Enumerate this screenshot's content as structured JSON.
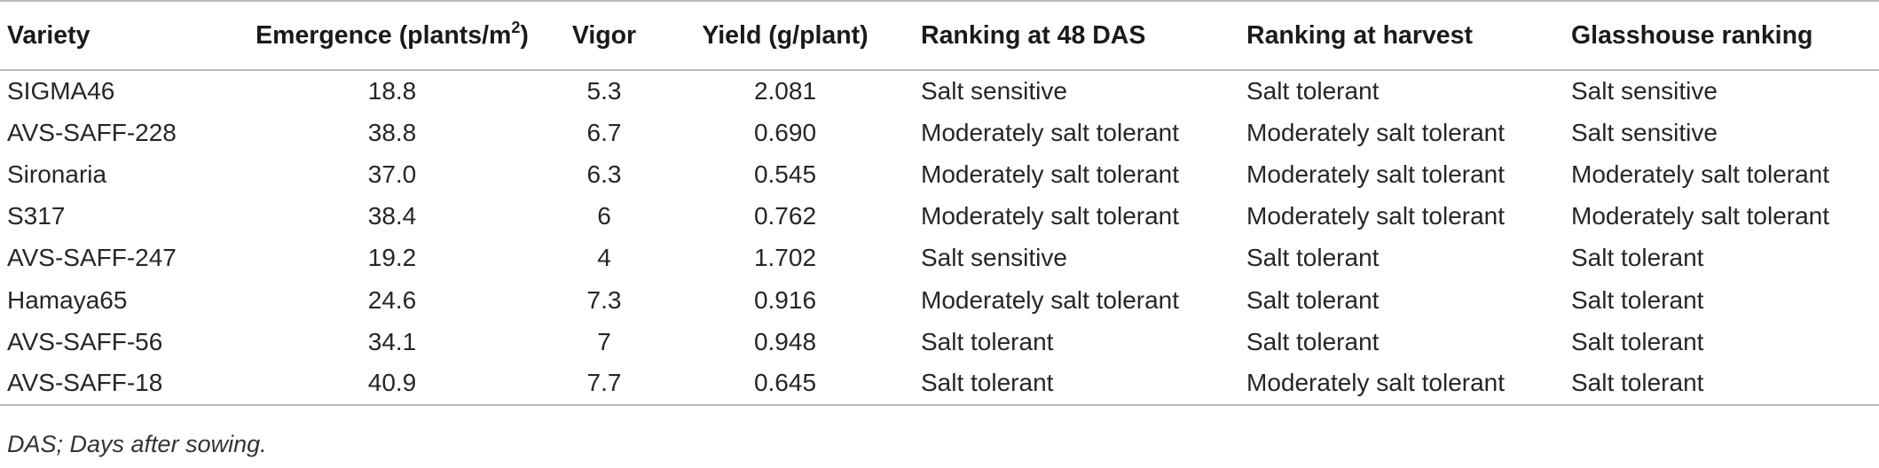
{
  "table": {
    "headers": {
      "variety": "Variety",
      "emergence_prefix": "Emergence (plants/m",
      "emergence_sup": "2",
      "emergence_suffix": ")",
      "vigor": "Vigor",
      "yield": "Yield (g/plant)",
      "rank48": "Ranking at 48 DAS",
      "rank_harvest": "Ranking at harvest",
      "glasshouse": "Glasshouse ranking"
    },
    "rows": [
      {
        "variety": "SIGMA46",
        "emergence": "18.8",
        "vigor": "5.3",
        "yield": "2.081",
        "rank48": "Salt sensitive",
        "rank_harvest": "Salt tolerant",
        "glasshouse": "Salt sensitive"
      },
      {
        "variety": "AVS-SAFF-228",
        "emergence": "38.8",
        "vigor": "6.7",
        "yield": "0.690",
        "rank48": "Moderately salt tolerant",
        "rank_harvest": "Moderately salt tolerant",
        "glasshouse": "Salt sensitive"
      },
      {
        "variety": "Sironaria",
        "emergence": "37.0",
        "vigor": "6.3",
        "yield": "0.545",
        "rank48": "Moderately salt tolerant",
        "rank_harvest": "Moderately salt tolerant",
        "glasshouse": "Moderately salt tolerant"
      },
      {
        "variety": "S317",
        "emergence": "38.4",
        "vigor": "6",
        "yield": "0.762",
        "rank48": "Moderately salt tolerant",
        "rank_harvest": "Moderately salt tolerant",
        "glasshouse": "Moderately salt tolerant"
      },
      {
        "variety": "AVS-SAFF-247",
        "emergence": "19.2",
        "vigor": "4",
        "yield": "1.702",
        "rank48": "Salt sensitive",
        "rank_harvest": "Salt tolerant",
        "glasshouse": "Salt tolerant"
      },
      {
        "variety": "Hamaya65",
        "emergence": "24.6",
        "vigor": "7.3",
        "yield": "0.916",
        "rank48": "Moderately salt tolerant",
        "rank_harvest": "Salt tolerant",
        "glasshouse": "Salt tolerant"
      },
      {
        "variety": "AVS-SAFF-56",
        "emergence": "34.1",
        "vigor": "7",
        "yield": "0.948",
        "rank48": "Salt tolerant",
        "rank_harvest": "Salt tolerant",
        "glasshouse": "Salt tolerant"
      },
      {
        "variety": "AVS-SAFF-18",
        "emergence": "40.9",
        "vigor": "7.7",
        "yield": "0.645",
        "rank48": "Salt tolerant",
        "rank_harvest": "Moderately salt tolerant",
        "glasshouse": "Salt tolerant"
      }
    ]
  },
  "footnote": "DAS; Days after sowing."
}
